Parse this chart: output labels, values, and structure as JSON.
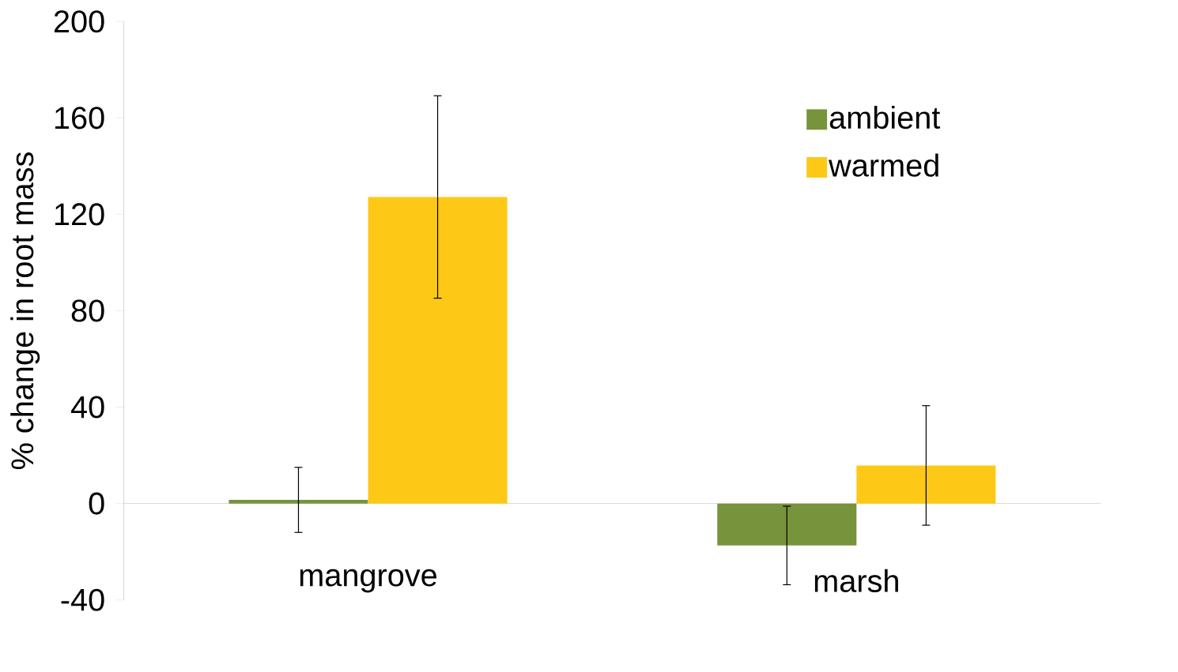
{
  "chart_data": {
    "type": "bar",
    "ylabel": "% change in root mass",
    "categories": [
      "mangrove",
      "marsh"
    ],
    "series": [
      {
        "name": "ambient",
        "color": "#77933c",
        "values": [
          1.5,
          -17.4
        ],
        "errors": [
          13.5,
          16.3
        ]
      },
      {
        "name": "warmed",
        "color": "#fec817",
        "values": [
          127.2,
          15.8
        ],
        "errors": [
          42,
          24.8
        ]
      }
    ],
    "ylim": [
      -40,
      200
    ],
    "yticks": [
      -40,
      0,
      40,
      80,
      120,
      160,
      200
    ],
    "grid": false,
    "legend": "top right"
  }
}
